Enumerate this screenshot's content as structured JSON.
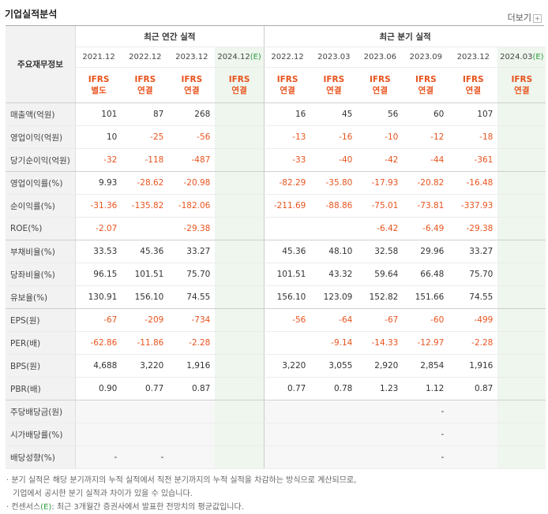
{
  "title": "기업실적분석",
  "more_label": "더보기",
  "more_icon": "plus-icon",
  "header": {
    "row_label": "주요재무정보",
    "annual_group": "최근 연간 실적",
    "quarterly_group": "최근 분기 실적",
    "annual_periods": [
      "2021.12",
      "2022.12",
      "2023.12",
      "2024.12"
    ],
    "quarterly_periods": [
      "2022.12",
      "2023.03",
      "2023.06",
      "2023.09",
      "2023.12",
      "2024.03"
    ],
    "estimate_suffix": "(E)",
    "annual_types": [
      [
        "IFRS",
        "별도"
      ],
      [
        "IFRS",
        "연결"
      ],
      [
        "IFRS",
        "연결"
      ],
      [
        "IFRS",
        "연결"
      ]
    ],
    "quarterly_types": [
      [
        "IFRS",
        "연결"
      ],
      [
        "IFRS",
        "연결"
      ],
      [
        "IFRS",
        "연결"
      ],
      [
        "IFRS",
        "연결"
      ],
      [
        "IFRS",
        "연결"
      ],
      [
        "IFRS",
        "연결"
      ]
    ]
  },
  "rows": [
    {
      "label": "매출액(억원)",
      "annual": [
        "101",
        "87",
        "268",
        ""
      ],
      "quarterly": [
        "16",
        "45",
        "56",
        "60",
        "107",
        ""
      ]
    },
    {
      "label": "영업이익(억원)",
      "annual": [
        "10",
        "-25",
        "-56",
        ""
      ],
      "quarterly": [
        "-13",
        "-16",
        "-10",
        "-12",
        "-18",
        ""
      ]
    },
    {
      "label": "당기순이익(억원)",
      "annual": [
        "-32",
        "-118",
        "-487",
        ""
      ],
      "quarterly": [
        "-33",
        "-40",
        "-42",
        "-44",
        "-361",
        ""
      ]
    },
    {
      "label": "영업이익률(%)",
      "annual": [
        "9.93",
        "-28.62",
        "-20.98",
        ""
      ],
      "quarterly": [
        "-82.29",
        "-35.80",
        "-17.93",
        "-20.82",
        "-16.48",
        ""
      ]
    },
    {
      "label": "순이익률(%)",
      "annual": [
        "-31.36",
        "-135.82",
        "-182.06",
        ""
      ],
      "quarterly": [
        "-211.69",
        "-88.86",
        "-75.01",
        "-73.81",
        "-337.93",
        ""
      ]
    },
    {
      "label": "ROE(%)",
      "annual": [
        "-2.07",
        "",
        "-29.38",
        ""
      ],
      "quarterly": [
        "",
        "",
        "-6.42",
        "-6.49",
        "-29.38",
        ""
      ]
    },
    {
      "label": "부채비율(%)",
      "annual": [
        "33.53",
        "45.36",
        "33.27",
        ""
      ],
      "quarterly": [
        "45.36",
        "48.10",
        "32.58",
        "29.96",
        "33.27",
        ""
      ]
    },
    {
      "label": "당좌비율(%)",
      "annual": [
        "96.15",
        "101.51",
        "75.70",
        ""
      ],
      "quarterly": [
        "101.51",
        "43.32",
        "59.64",
        "66.48",
        "75.70",
        ""
      ]
    },
    {
      "label": "유보율(%)",
      "annual": [
        "130.91",
        "156.10",
        "74.55",
        ""
      ],
      "quarterly": [
        "156.10",
        "123.09",
        "152.82",
        "151.66",
        "74.55",
        ""
      ]
    },
    {
      "label": "EPS(원)",
      "annual": [
        "-67",
        "-209",
        "-734",
        ""
      ],
      "quarterly": [
        "-56",
        "-64",
        "-67",
        "-60",
        "-499",
        ""
      ]
    },
    {
      "label": "PER(배)",
      "annual": [
        "-62.86",
        "-11.86",
        "-2.28",
        ""
      ],
      "quarterly": [
        "",
        "-9.14",
        "-14.33",
        "-12.97",
        "-2.28",
        ""
      ]
    },
    {
      "label": "BPS(원)",
      "annual": [
        "4,688",
        "3,220",
        "1,916",
        ""
      ],
      "quarterly": [
        "3,220",
        "3,055",
        "2,920",
        "2,854",
        "1,916",
        ""
      ]
    },
    {
      "label": "PBR(배)",
      "annual": [
        "0.90",
        "0.77",
        "0.87",
        ""
      ],
      "quarterly": [
        "0.77",
        "0.78",
        "1.23",
        "1.12",
        "0.87",
        ""
      ]
    },
    {
      "label": "주당배당금(원)",
      "annual": [
        "",
        "",
        "",
        ""
      ],
      "quarterly": [
        "",
        "",
        "",
        "-",
        "",
        ""
      ]
    },
    {
      "label": "시가배당률(%)",
      "annual": [
        "",
        "",
        "",
        ""
      ],
      "quarterly": [
        "",
        "",
        "",
        "-",
        "",
        ""
      ]
    },
    {
      "label": "배당성향(%)",
      "annual": [
        "-",
        "-",
        "",
        ""
      ],
      "quarterly": [
        "",
        "",
        "",
        "-",
        "",
        ""
      ]
    }
  ],
  "notes": [
    "· 분기 실적은 해당 분기까지의 누적 실적에서 직전 분기까지의 누적 실적을 차감하는 방식으로 계산되므로,",
    "  기업에서 공시한 분기 실적과 차이가 있을 수 있습니다.",
    "· 컨센서스",
    ": 최근 3개월간 증권사에서 발표한 전망치의 평균값입니다."
  ],
  "colors": {
    "negative": "#e8541e",
    "estimate": "#2a9c3c",
    "estimate_bg": "#eef6ee",
    "label_bg": "#f2f2f2"
  }
}
